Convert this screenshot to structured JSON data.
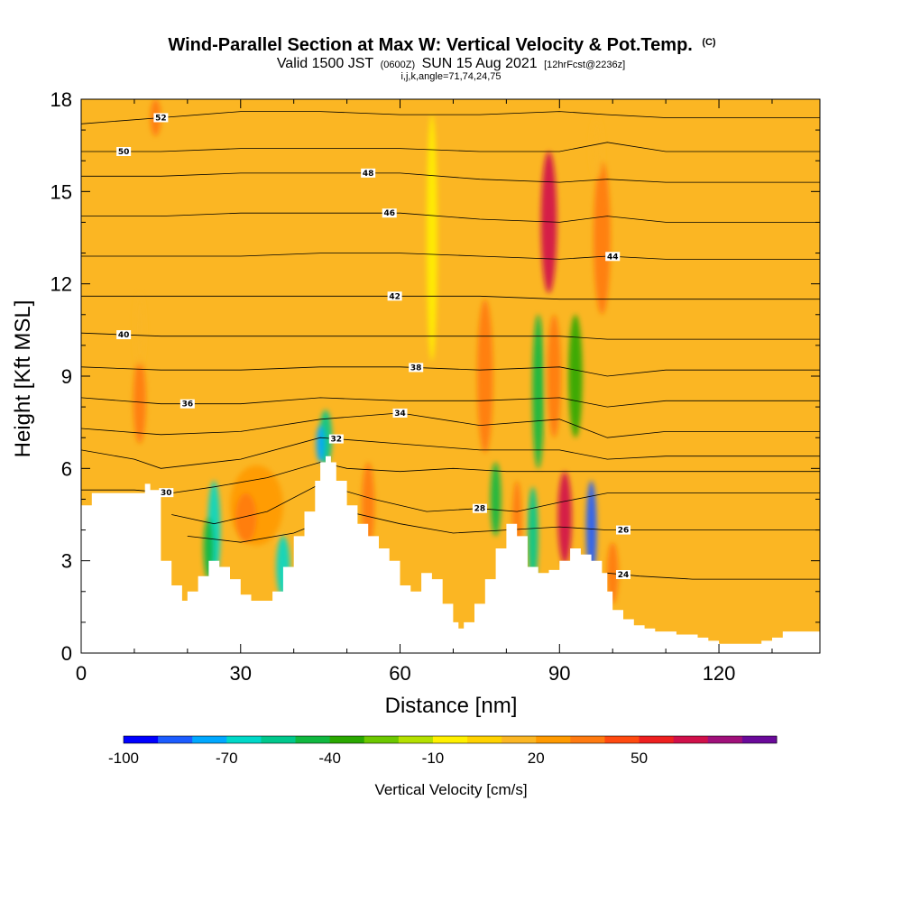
{
  "header": {
    "title": "Wind-Parallel Section at Max W: Vertical Velocity & Pot.Temp.",
    "copyright": "(C)",
    "valid_prefix": "Valid 1500 JST",
    "valid_zulu": "(0600Z)",
    "valid_date": "SUN 15 Aug 2021",
    "forecast": "[12hrFcst@2236z]",
    "indices": "i,j,k,angle=71,74,24,75"
  },
  "chart_data": {
    "type": "heatmap",
    "xlabel": "Distance [nm]",
    "ylabel": "Height [Kft MSL]",
    "xlim": [
      0,
      139
    ],
    "ylim": [
      0,
      18
    ],
    "x_ticks": [
      {
        "value": 0,
        "label": "0"
      },
      {
        "value": 30,
        "label": "30"
      },
      {
        "value": 60,
        "label": "60"
      },
      {
        "value": 90,
        "label": "90"
      },
      {
        "value": 120,
        "label": "120"
      }
    ],
    "y_ticks": [
      {
        "value": 0,
        "label": "0"
      },
      {
        "value": 3,
        "label": "3"
      },
      {
        "value": 6,
        "label": "6"
      },
      {
        "value": 9,
        "label": "9"
      },
      {
        "value": 12,
        "label": "12"
      },
      {
        "value": 15,
        "label": "15"
      },
      {
        "value": 18,
        "label": "18"
      }
    ],
    "background_color": "#fbb623",
    "terrain": {
      "x": [
        0,
        2,
        10,
        12,
        13,
        15,
        17,
        19,
        20,
        22,
        24,
        26,
        28,
        30,
        32,
        34,
        36,
        38,
        40,
        42,
        44,
        45,
        46,
        47,
        48,
        50,
        52,
        54,
        56,
        58,
        60,
        62,
        64,
        66,
        68,
        70,
        71,
        72,
        74,
        76,
        78,
        80,
        82,
        84,
        86,
        88,
        90,
        92,
        94,
        96,
        98,
        99,
        100,
        102,
        104,
        106,
        108,
        110,
        112,
        114,
        116,
        118,
        120,
        122,
        124,
        126,
        128,
        130,
        132,
        134,
        136,
        139
      ],
      "y": [
        4.8,
        5.2,
        5.2,
        5.5,
        5.3,
        3.0,
        2.2,
        1.7,
        2.0,
        2.5,
        3.0,
        2.8,
        2.4,
        1.9,
        1.7,
        1.7,
        2.0,
        2.8,
        3.8,
        4.6,
        5.6,
        6.2,
        6.4,
        6.2,
        5.6,
        4.8,
        4.2,
        3.8,
        3.4,
        3.0,
        2.2,
        2.0,
        2.6,
        2.4,
        1.6,
        1.0,
        0.8,
        1.0,
        1.6,
        2.4,
        3.4,
        4.2,
        3.8,
        2.8,
        2.6,
        2.7,
        3.0,
        3.4,
        3.2,
        3.0,
        2.6,
        2.0,
        1.4,
        1.1,
        0.9,
        0.8,
        0.7,
        0.7,
        0.6,
        0.6,
        0.5,
        0.4,
        0.3,
        0.3,
        0.3,
        0.3,
        0.4,
        0.5,
        0.7,
        0.7,
        0.7,
        0.7
      ]
    },
    "velocity_cells": [
      {
        "x": 11,
        "y": 8.2,
        "w": 1.2,
        "h": 1.4,
        "value": 30
      },
      {
        "x": 11,
        "y": 10.5,
        "w": 1.0,
        "h": 1.2,
        "value": 10
      },
      {
        "x": 14,
        "y": 17.4,
        "w": 1.0,
        "h": 0.6,
        "value": 30
      },
      {
        "x": 25,
        "y": 4.0,
        "w": 1.2,
        "h": 1.6,
        "value": -70
      },
      {
        "x": 24,
        "y": 3.4,
        "w": 1.0,
        "h": 1.0,
        "value": -50
      },
      {
        "x": 33,
        "y": 4.8,
        "w": 5.0,
        "h": 1.3,
        "value": 20
      },
      {
        "x": 31,
        "y": 4.4,
        "w": 2.0,
        "h": 0.8,
        "value": 30
      },
      {
        "x": 38,
        "y": 2.8,
        "w": 1.3,
        "h": 1.0,
        "value": -70
      },
      {
        "x": 46,
        "y": 7.0,
        "w": 1.2,
        "h": 0.9,
        "value": -60
      },
      {
        "x": 45,
        "y": 6.8,
        "w": 0.8,
        "h": 0.6,
        "value": -80
      },
      {
        "x": 54,
        "y": 4.8,
        "w": 1.2,
        "h": 1.4,
        "value": 30
      },
      {
        "x": 66,
        "y": 13.5,
        "w": 1.0,
        "h": 4.0,
        "value": -10
      },
      {
        "x": 76,
        "y": 9.0,
        "w": 1.5,
        "h": 2.5,
        "value": 30
      },
      {
        "x": 78,
        "y": 5.0,
        "w": 1.0,
        "h": 1.2,
        "value": -50
      },
      {
        "x": 82,
        "y": 4.2,
        "w": 0.9,
        "h": 1.4,
        "value": 30
      },
      {
        "x": 85,
        "y": 3.8,
        "w": 1.0,
        "h": 1.6,
        "value": -60
      },
      {
        "x": 86,
        "y": 8.5,
        "w": 1.1,
        "h": 2.5,
        "value": -50
      },
      {
        "x": 88,
        "y": 14.0,
        "w": 1.5,
        "h": 2.3,
        "value": 60
      },
      {
        "x": 89,
        "y": 9.0,
        "w": 1.3,
        "h": 2.0,
        "value": 30
      },
      {
        "x": 91,
        "y": 4.4,
        "w": 1.3,
        "h": 1.5,
        "value": 60
      },
      {
        "x": 93,
        "y": 9.0,
        "w": 1.3,
        "h": 2.0,
        "value": -40
      },
      {
        "x": 96,
        "y": 4.0,
        "w": 1.0,
        "h": 1.6,
        "value": -90
      },
      {
        "x": 98,
        "y": 13.5,
        "w": 1.6,
        "h": 2.5,
        "value": 30
      },
      {
        "x": 100,
        "y": 2.6,
        "w": 1.1,
        "h": 1.0,
        "value": 30
      },
      {
        "x": 97,
        "y": 16.4,
        "w": 1.2,
        "h": 1.0,
        "value": 10
      }
    ],
    "contours": [
      {
        "label": "52",
        "x": [
          0,
          15,
          30,
          45,
          60,
          75,
          90,
          99,
          110,
          139
        ],
        "y": [
          17.2,
          17.4,
          17.6,
          17.6,
          17.5,
          17.5,
          17.6,
          17.5,
          17.4,
          17.4
        ],
        "label_x": 15
      },
      {
        "label": "50",
        "x": [
          0,
          15,
          30,
          45,
          60,
          75,
          90,
          99,
          110,
          139
        ],
        "y": [
          16.3,
          16.3,
          16.4,
          16.4,
          16.4,
          16.3,
          16.3,
          16.6,
          16.3,
          16.3
        ],
        "label_x": 8
      },
      {
        "label": "48",
        "x": [
          0,
          15,
          30,
          45,
          60,
          75,
          90,
          99,
          110,
          139
        ],
        "y": [
          15.5,
          15.5,
          15.6,
          15.6,
          15.6,
          15.4,
          15.3,
          15.4,
          15.3,
          15.3
        ],
        "label_x": 54
      },
      {
        "label": "46",
        "x": [
          0,
          15,
          30,
          45,
          60,
          75,
          90,
          99,
          110,
          139
        ],
        "y": [
          14.2,
          14.2,
          14.3,
          14.3,
          14.3,
          14.1,
          14.0,
          14.2,
          14.0,
          14.0
        ],
        "label_x": 58
      },
      {
        "label": "44",
        "x": [
          0,
          15,
          30,
          45,
          60,
          75,
          90,
          99,
          110,
          139
        ],
        "y": [
          12.9,
          12.9,
          12.9,
          13.0,
          13.0,
          12.9,
          12.8,
          12.9,
          12.8,
          12.8
        ],
        "label_x": 100
      },
      {
        "label": "42",
        "x": [
          0,
          15,
          30,
          45,
          60,
          75,
          90,
          99,
          110,
          139
        ],
        "y": [
          11.6,
          11.6,
          11.6,
          11.6,
          11.6,
          11.6,
          11.5,
          11.5,
          11.5,
          11.5
        ],
        "label_x": 59
      },
      {
        "label": "40",
        "x": [
          0,
          15,
          30,
          45,
          60,
          75,
          90,
          99,
          110,
          139
        ],
        "y": [
          10.4,
          10.3,
          10.3,
          10.3,
          10.3,
          10.3,
          10.3,
          10.2,
          10.2,
          10.2
        ],
        "label_x": 8
      },
      {
        "label": "38",
        "x": [
          0,
          15,
          30,
          45,
          60,
          75,
          90,
          99,
          110,
          139
        ],
        "y": [
          9.3,
          9.2,
          9.2,
          9.3,
          9.3,
          9.2,
          9.3,
          9.0,
          9.2,
          9.2
        ],
        "label_x": 63
      },
      {
        "label": "36",
        "x": [
          0,
          15,
          30,
          45,
          60,
          75,
          90,
          99,
          110,
          139
        ],
        "y": [
          8.3,
          8.1,
          8.1,
          8.3,
          8.2,
          8.2,
          8.3,
          8.0,
          8.2,
          8.2
        ],
        "label_x": 20
      },
      {
        "label": "34",
        "x": [
          0,
          15,
          30,
          45,
          60,
          75,
          90,
          99,
          110,
          139
        ],
        "y": [
          7.3,
          7.1,
          7.2,
          7.6,
          7.8,
          7.4,
          7.6,
          7.0,
          7.2,
          7.2
        ],
        "label_x": 60
      },
      {
        "label": "32",
        "x": [
          0,
          10,
          15,
          30,
          45,
          60,
          75,
          90,
          99,
          110,
          139
        ],
        "y": [
          6.6,
          6.3,
          6.0,
          6.3,
          7.0,
          6.8,
          6.6,
          6.6,
          6.3,
          6.4,
          6.4
        ],
        "label_x": 48
      },
      {
        "label": "30",
        "x": [
          0,
          10,
          17,
          25,
          35,
          45,
          50,
          60,
          70,
          80,
          90,
          99,
          110,
          139
        ],
        "y": [
          5.3,
          5.3,
          5.2,
          5.4,
          5.7,
          6.2,
          6.0,
          5.9,
          6.0,
          5.9,
          5.9,
          5.9,
          5.9,
          5.9
        ],
        "label_x": 16
      },
      {
        "label": "28",
        "x": [
          17,
          25,
          35,
          45,
          55,
          65,
          75,
          82,
          90,
          99,
          110,
          139
        ],
        "y": [
          4.5,
          4.2,
          4.6,
          5.5,
          5.0,
          4.6,
          4.7,
          4.6,
          4.9,
          5.2,
          5.2,
          5.2
        ],
        "label_x": 75
      },
      {
        "label": "26",
        "x": [
          20,
          30,
          40,
          50,
          60,
          70,
          80,
          90,
          99,
          110,
          139
        ],
        "y": [
          3.8,
          3.6,
          3.9,
          4.6,
          4.2,
          3.9,
          4.0,
          4.1,
          4.0,
          4.0,
          4.0
        ],
        "label_x": 102
      },
      {
        "label": "24",
        "x": [
          99,
          105,
          115,
          125,
          139
        ],
        "y": [
          2.6,
          2.5,
          2.4,
          2.4,
          2.4
        ],
        "label_x": 102
      }
    ],
    "colorbar": {
      "title": "Vertical Velocity [cm/s]",
      "colors": [
        "#0000ff",
        "#1c5cff",
        "#00a8ff",
        "#00d8c8",
        "#00c88c",
        "#10b840",
        "#2aa800",
        "#6cc800",
        "#b4e000",
        "#fff000",
        "#ffd200",
        "#fbb623",
        "#ff9a00",
        "#ff7a10",
        "#ff4a10",
        "#ee2020",
        "#d0104a",
        "#a0107a",
        "#6a0a9a"
      ],
      "labels": [
        {
          "index": 0,
          "text": "-100"
        },
        {
          "index": 3,
          "text": "-70"
        },
        {
          "index": 6,
          "text": "-40"
        },
        {
          "index": 9,
          "text": "-10"
        },
        {
          "index": 12,
          "text": "20"
        },
        {
          "index": 15,
          "text": "50"
        }
      ]
    }
  }
}
